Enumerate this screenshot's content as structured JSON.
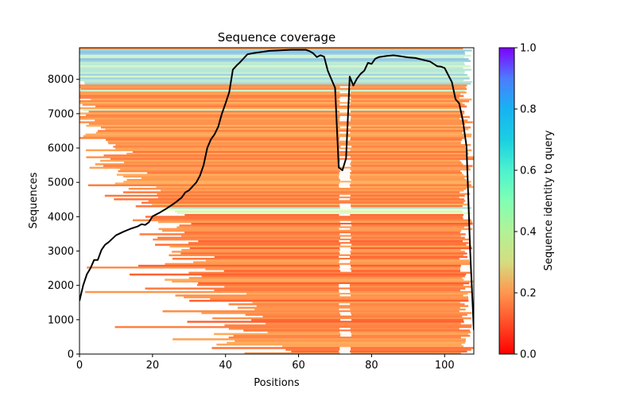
{
  "chart_data": {
    "type": "heatmap",
    "title": "Sequence coverage",
    "xlabel": "Positions",
    "ylabel": "Sequences",
    "xlim": [
      0,
      108
    ],
    "ylim": [
      0,
      8920
    ],
    "x_ticks": [
      0,
      20,
      40,
      60,
      80,
      100
    ],
    "y_ticks": [
      0,
      1000,
      2000,
      3000,
      4000,
      5000,
      6000,
      7000,
      8000
    ],
    "colorbar": {
      "label": "Sequence identity to query",
      "colormap": "rainbow_r",
      "range": [
        0.0,
        1.0
      ],
      "ticks": [
        0.0,
        0.2,
        0.4,
        0.6,
        0.8,
        1.0
      ],
      "tick_labels": [
        "0.0",
        "0.2",
        "0.4",
        "0.6",
        "0.8",
        "1.0"
      ]
    },
    "identity_bands": [
      {
        "from_seq": 0,
        "to_seq": 4100,
        "identity": 0.18,
        "note": "low identity alignments, mostly orange"
      },
      {
        "from_seq": 4100,
        "to_seq": 4300,
        "identity": 0.6,
        "note": "band of cyan/green rows"
      },
      {
        "from_seq": 4300,
        "to_seq": 7850,
        "identity": 0.2,
        "note": "orange rows"
      },
      {
        "from_seq": 7850,
        "to_seq": 8920,
        "identity": 0.65,
        "note": "high identity cyan/blue rows"
      }
    ],
    "gap_region": {
      "x_from": 71,
      "x_to": 74,
      "note": "column gap with reduced coverage"
    },
    "series": [
      {
        "name": "coverage",
        "color": "#000000",
        "x": [
          0,
          1,
          2,
          3,
          4,
          5,
          6,
          7,
          8,
          10,
          12,
          14,
          16,
          17,
          18,
          19,
          20,
          22,
          24,
          26,
          28,
          29,
          30,
          32,
          33,
          34,
          35,
          36,
          37,
          38,
          39,
          40,
          41,
          42,
          43,
          44,
          46,
          48,
          50,
          52,
          54,
          56,
          58,
          60,
          62,
          63,
          64,
          65,
          66,
          67,
          68,
          70,
          71,
          72,
          73,
          74,
          75,
          76,
          77,
          78,
          79,
          80,
          81,
          82,
          84,
          86,
          88,
          90,
          92,
          94,
          96,
          98,
          99,
          100,
          102,
          103,
          104,
          105,
          106,
          107,
          108
        ],
        "y": [
          1550,
          2000,
          2320,
          2500,
          2740,
          2740,
          3030,
          3180,
          3260,
          3460,
          3560,
          3650,
          3720,
          3780,
          3760,
          3840,
          4010,
          4120,
          4250,
          4390,
          4560,
          4710,
          4770,
          5000,
          5200,
          5500,
          6000,
          6250,
          6400,
          6620,
          7000,
          7300,
          7620,
          8280,
          8400,
          8500,
          8730,
          8770,
          8800,
          8830,
          8840,
          8850,
          8860,
          8860,
          8860,
          8820,
          8760,
          8650,
          8700,
          8660,
          8250,
          7750,
          5430,
          5350,
          5700,
          8080,
          7820,
          8020,
          8160,
          8250,
          8480,
          8450,
          8600,
          8650,
          8680,
          8700,
          8670,
          8640,
          8620,
          8570,
          8520,
          8380,
          8370,
          8330,
          7920,
          7420,
          7300,
          6800,
          6050,
          3000,
          700
        ]
      }
    ]
  }
}
